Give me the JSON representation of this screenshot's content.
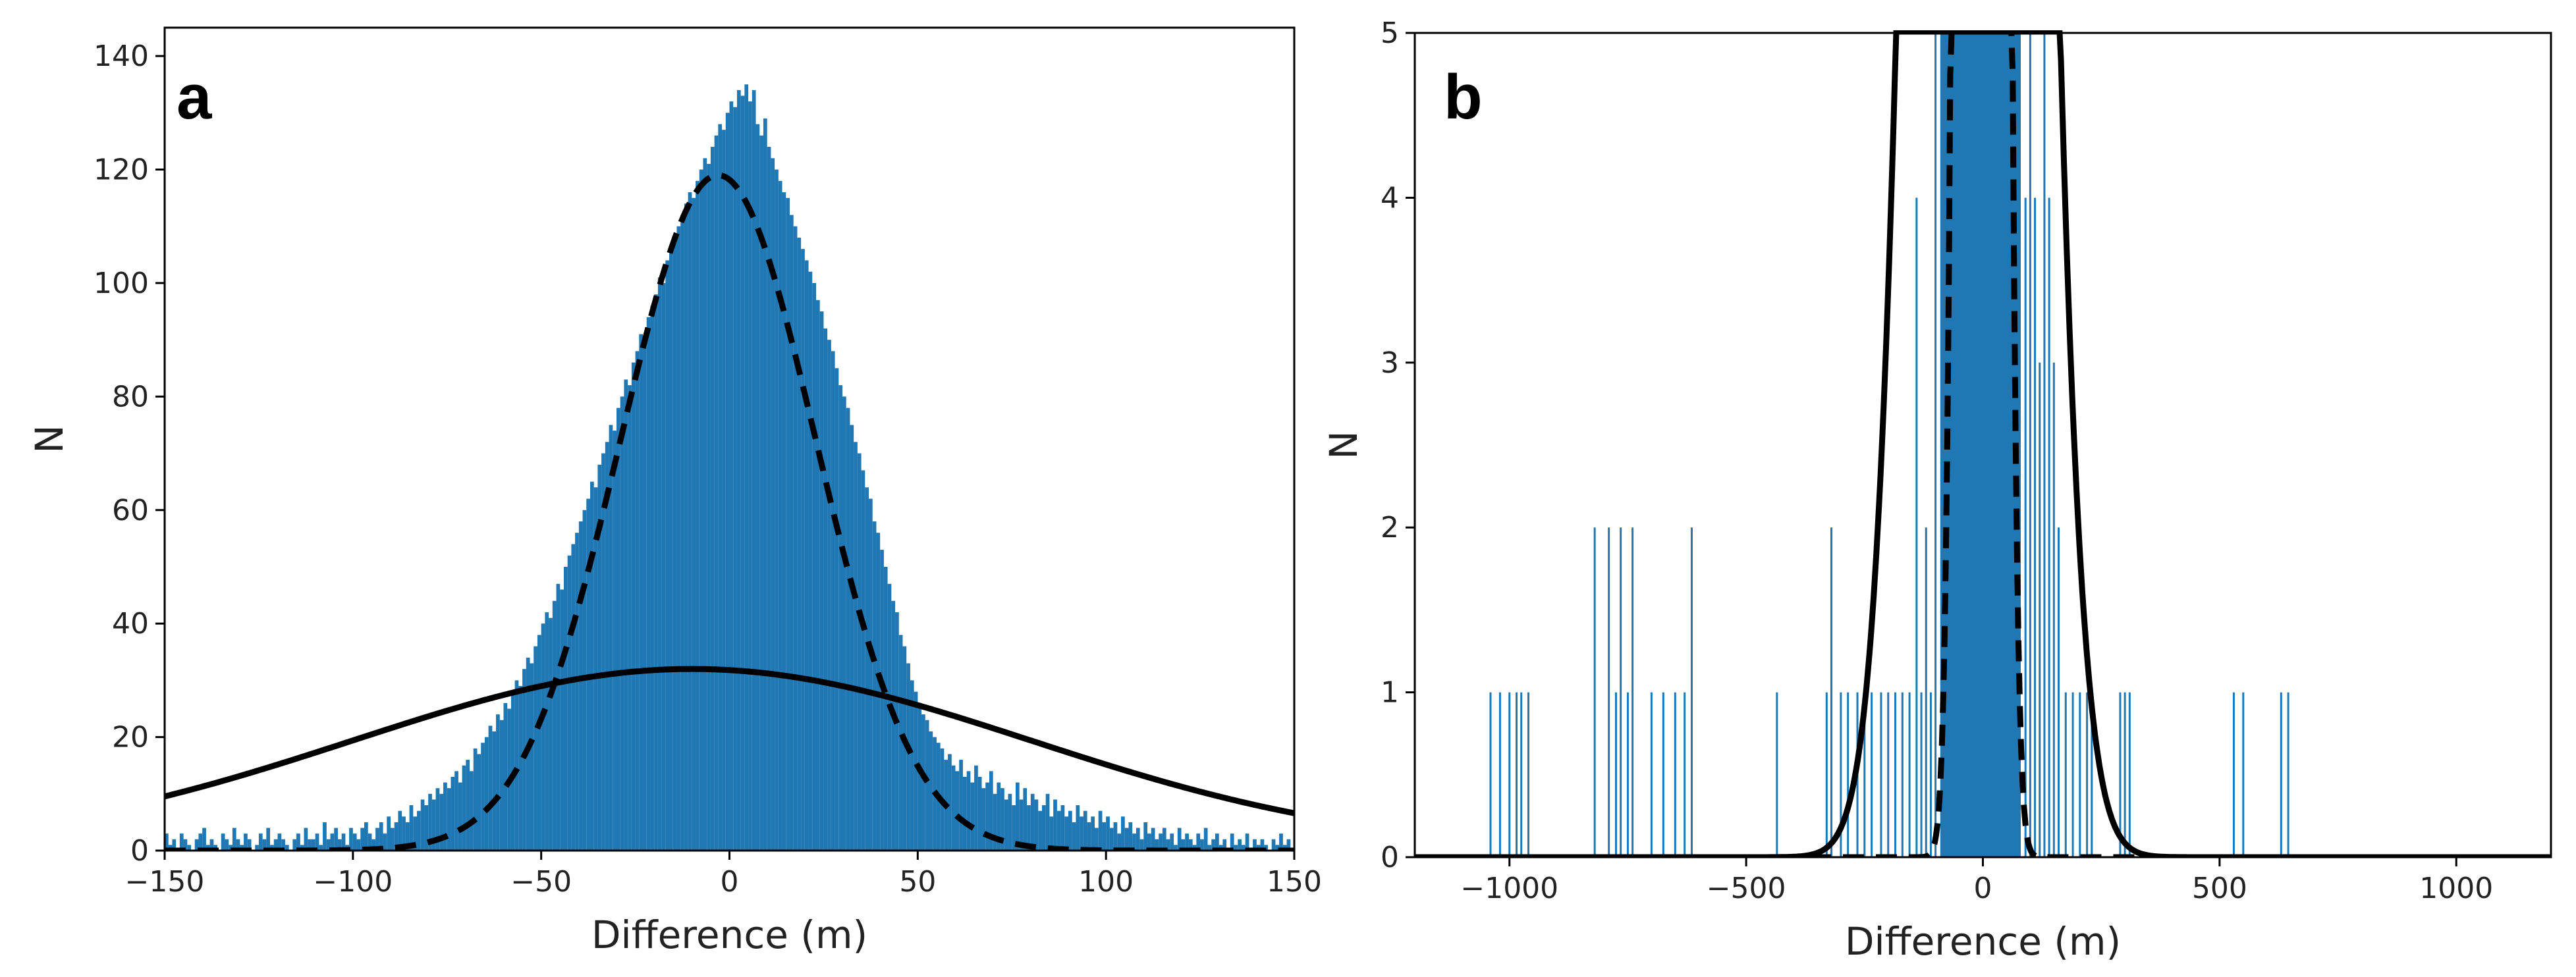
{
  "chart_data": [
    {
      "type": "bar",
      "panel_label": "a",
      "xlabel": "Difference (m)",
      "ylabel": "N",
      "xlim": [
        -150,
        150
      ],
      "ylim": [
        0,
        145
      ],
      "xticks": [
        -150,
        -100,
        -50,
        0,
        50,
        100,
        150
      ],
      "xtick_labels": [
        "−150",
        "−100",
        "−50",
        "0",
        "50",
        "100",
        "150"
      ],
      "yticks": [
        0,
        20,
        40,
        60,
        80,
        100,
        120,
        140
      ],
      "ytick_labels": [
        "0",
        "20",
        "40",
        "60",
        "80",
        "100",
        "120",
        "140"
      ],
      "histogram": {
        "bin_width": 1,
        "bin_start": -150,
        "counts": [
          3,
          1,
          2,
          0,
          3,
          2,
          1,
          0,
          2,
          3,
          4,
          1,
          2,
          1,
          0,
          3,
          2,
          1,
          4,
          2,
          1,
          3,
          2,
          0,
          1,
          3,
          2,
          4,
          1,
          2,
          3,
          2,
          1,
          0,
          2,
          3,
          1,
          4,
          2,
          2,
          3,
          1,
          5,
          2,
          3,
          4,
          2,
          3,
          1,
          4,
          3,
          2,
          4,
          5,
          3,
          2,
          4,
          5,
          3,
          6,
          4,
          5,
          7,
          6,
          5,
          8,
          6,
          7,
          9,
          8,
          10,
          9,
          11,
          10,
          12,
          11,
          13,
          14,
          12,
          15,
          16,
          14,
          18,
          17,
          19,
          20,
          22,
          21,
          24,
          23,
          26,
          25,
          28,
          30,
          29,
          32,
          34,
          33,
          36,
          38,
          40,
          42,
          41,
          44,
          47,
          46,
          50,
          52,
          54,
          56,
          58,
          60,
          62,
          65,
          64,
          68,
          70,
          72,
          75,
          74,
          78,
          80,
          83,
          82,
          86,
          88,
          91,
          90,
          94,
          96,
          98,
          101,
          100,
          104,
          106,
          108,
          110,
          112,
          114,
          116,
          115,
          118,
          120,
          122,
          121,
          124,
          126,
          128,
          127,
          130,
          132,
          131,
          134,
          133,
          135,
          132,
          134,
          128,
          126,
          129,
          124,
          122,
          120,
          118,
          116,
          115,
          112,
          110,
          108,
          106,
          104,
          102,
          100,
          97,
          95,
          92,
          90,
          88,
          85,
          82,
          80,
          78,
          75,
          72,
          70,
          67,
          64,
          62,
          58,
          56,
          53,
          50,
          47,
          44,
          42,
          38,
          36,
          33,
          30,
          28,
          26,
          24,
          23,
          21,
          20,
          19,
          18,
          16,
          17,
          15,
          14,
          16,
          13,
          14,
          12,
          15,
          13,
          11,
          12,
          14,
          10,
          12,
          11,
          9,
          10,
          8,
          12,
          9,
          11,
          8,
          10,
          9,
          7,
          8,
          10,
          6,
          9,
          7,
          8,
          6,
          7,
          5,
          8,
          6,
          7,
          5,
          6,
          4,
          7,
          5,
          6,
          4,
          5,
          3,
          6,
          4,
          5,
          3,
          4,
          2,
          5,
          3,
          4,
          2,
          3,
          4,
          2,
          3,
          1,
          4,
          2,
          3,
          2,
          1,
          3,
          2,
          4,
          1,
          2,
          3,
          1,
          2,
          0,
          3,
          1,
          2,
          1,
          3,
          0,
          2,
          1,
          2,
          1,
          0,
          2,
          1,
          3,
          1,
          2,
          0,
          1,
          2,
          1,
          0,
          2,
          1,
          1,
          0,
          2,
          1,
          0,
          1,
          2,
          0,
          1,
          1,
          0,
          2,
          1,
          0,
          1,
          0,
          1,
          2,
          0,
          1,
          0,
          1
        ],
        "color": "#1f77b4"
      },
      "series": [
        {
          "name": "",
          "style": "dashed",
          "color": "#000000",
          "peak": 119,
          "mean": -3,
          "sd": 26
        },
        {
          "name": "",
          "style": "solid",
          "color": "#000000",
          "peak": 32,
          "mean": -10,
          "sd": 90
        }
      ]
    },
    {
      "type": "bar",
      "panel_label": "b",
      "xlabel": "Difference (m)",
      "ylabel": "N",
      "xlim": [
        -1200,
        1200
      ],
      "ylim": [
        0,
        5
      ],
      "xticks": [
        -1000,
        -500,
        0,
        500,
        1000
      ],
      "xtick_labels": [
        "−1000",
        "−500",
        "0",
        "500",
        "1000"
      ],
      "yticks": [
        0,
        1,
        2,
        3,
        4,
        5
      ],
      "ytick_labels": [
        "0",
        "1",
        "2",
        "3",
        "4",
        "5"
      ],
      "central_block": {
        "from": -90,
        "to": 80,
        "value": 5
      },
      "spikes": [
        {
          "x": -1040,
          "v": 1
        },
        {
          "x": -1020,
          "v": 1
        },
        {
          "x": -1000,
          "v": 1
        },
        {
          "x": -985,
          "v": 1
        },
        {
          "x": -975,
          "v": 1
        },
        {
          "x": -960,
          "v": 1
        },
        {
          "x": -820,
          "v": 2
        },
        {
          "x": -790,
          "v": 2
        },
        {
          "x": -775,
          "v": 1
        },
        {
          "x": -765,
          "v": 2
        },
        {
          "x": -750,
          "v": 1
        },
        {
          "x": -740,
          "v": 2
        },
        {
          "x": -700,
          "v": 1
        },
        {
          "x": -675,
          "v": 1
        },
        {
          "x": -650,
          "v": 1
        },
        {
          "x": -630,
          "v": 1
        },
        {
          "x": -615,
          "v": 2
        },
        {
          "x": -435,
          "v": 1
        },
        {
          "x": -330,
          "v": 1
        },
        {
          "x": -320,
          "v": 2
        },
        {
          "x": -300,
          "v": 1
        },
        {
          "x": -285,
          "v": 1
        },
        {
          "x": -265,
          "v": 1
        },
        {
          "x": -250,
          "v": 1
        },
        {
          "x": -235,
          "v": 1
        },
        {
          "x": -215,
          "v": 1
        },
        {
          "x": -200,
          "v": 1
        },
        {
          "x": -185,
          "v": 1
        },
        {
          "x": -170,
          "v": 1
        },
        {
          "x": -155,
          "v": 1
        },
        {
          "x": -140,
          "v": 4
        },
        {
          "x": -130,
          "v": 1
        },
        {
          "x": -120,
          "v": 2
        },
        {
          "x": -110,
          "v": 1
        },
        {
          "x": -100,
          "v": 5
        },
        {
          "x": 90,
          "v": 4
        },
        {
          "x": 100,
          "v": 5
        },
        {
          "x": 110,
          "v": 4
        },
        {
          "x": 120,
          "v": 3
        },
        {
          "x": 130,
          "v": 5
        },
        {
          "x": 140,
          "v": 4
        },
        {
          "x": 150,
          "v": 3
        },
        {
          "x": 160,
          "v": 2
        },
        {
          "x": 175,
          "v": 1
        },
        {
          "x": 190,
          "v": 1
        },
        {
          "x": 205,
          "v": 1
        },
        {
          "x": 220,
          "v": 1
        },
        {
          "x": 230,
          "v": 1
        },
        {
          "x": 290,
          "v": 1
        },
        {
          "x": 300,
          "v": 1
        },
        {
          "x": 310,
          "v": 1
        },
        {
          "x": 530,
          "v": 1
        },
        {
          "x": 550,
          "v": 1
        },
        {
          "x": 630,
          "v": 1
        },
        {
          "x": 645,
          "v": 1
        }
      ],
      "series": [
        {
          "name": "",
          "style": "dashed",
          "color": "#000000",
          "peak": 119,
          "mean": -3,
          "sd": 26
        },
        {
          "name": "",
          "style": "solid",
          "color": "#000000",
          "peak": 32,
          "mean": -10,
          "sd": 90
        }
      ],
      "color": "#1f77b4"
    }
  ]
}
